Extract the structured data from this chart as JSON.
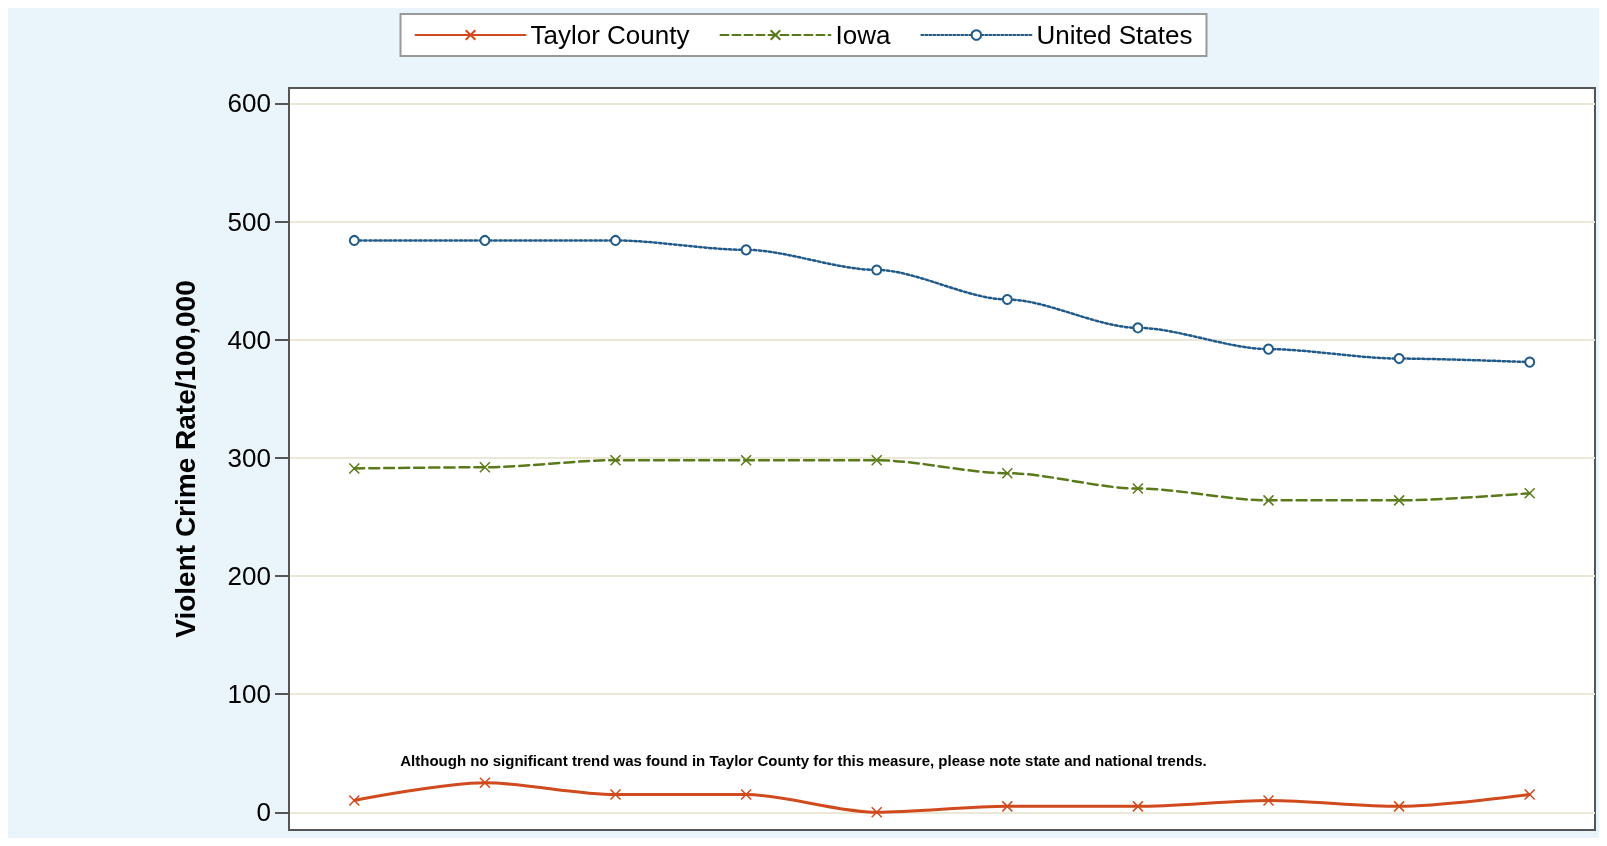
{
  "chart_data": {
    "type": "line",
    "ylabel": "Violent Crime Rate/100,000",
    "categories": [
      null,
      null,
      null,
      null,
      null,
      null,
      null,
      null,
      null,
      null
    ],
    "series": [
      {
        "name": "Taylor County",
        "color": "#d04a1e",
        "line_style": "solid",
        "marker": "cross",
        "values": [
          10,
          25,
          15,
          15,
          0,
          5,
          5,
          10,
          5,
          15
        ]
      },
      {
        "name": "Iowa",
        "color": "#5a7a1a",
        "line_style": "dashed",
        "marker": "cross",
        "values": [
          291,
          292,
          298,
          298,
          298,
          287,
          274,
          264,
          264,
          270
        ]
      },
      {
        "name": "United States",
        "color": "#1f5a8a",
        "line_style": "dotted",
        "marker": "circle",
        "values": [
          484,
          484,
          484,
          476,
          459,
          434,
          410,
          392,
          384,
          381
        ]
      }
    ],
    "ylim": [
      -15,
      613
    ],
    "yticks": [
      0,
      100,
      200,
      300,
      400,
      500,
      600
    ],
    "grid": "y",
    "legend": "top",
    "annotations": [
      "Although no significant trend was found in Taylor County for this measure, please note state and national trends."
    ]
  }
}
